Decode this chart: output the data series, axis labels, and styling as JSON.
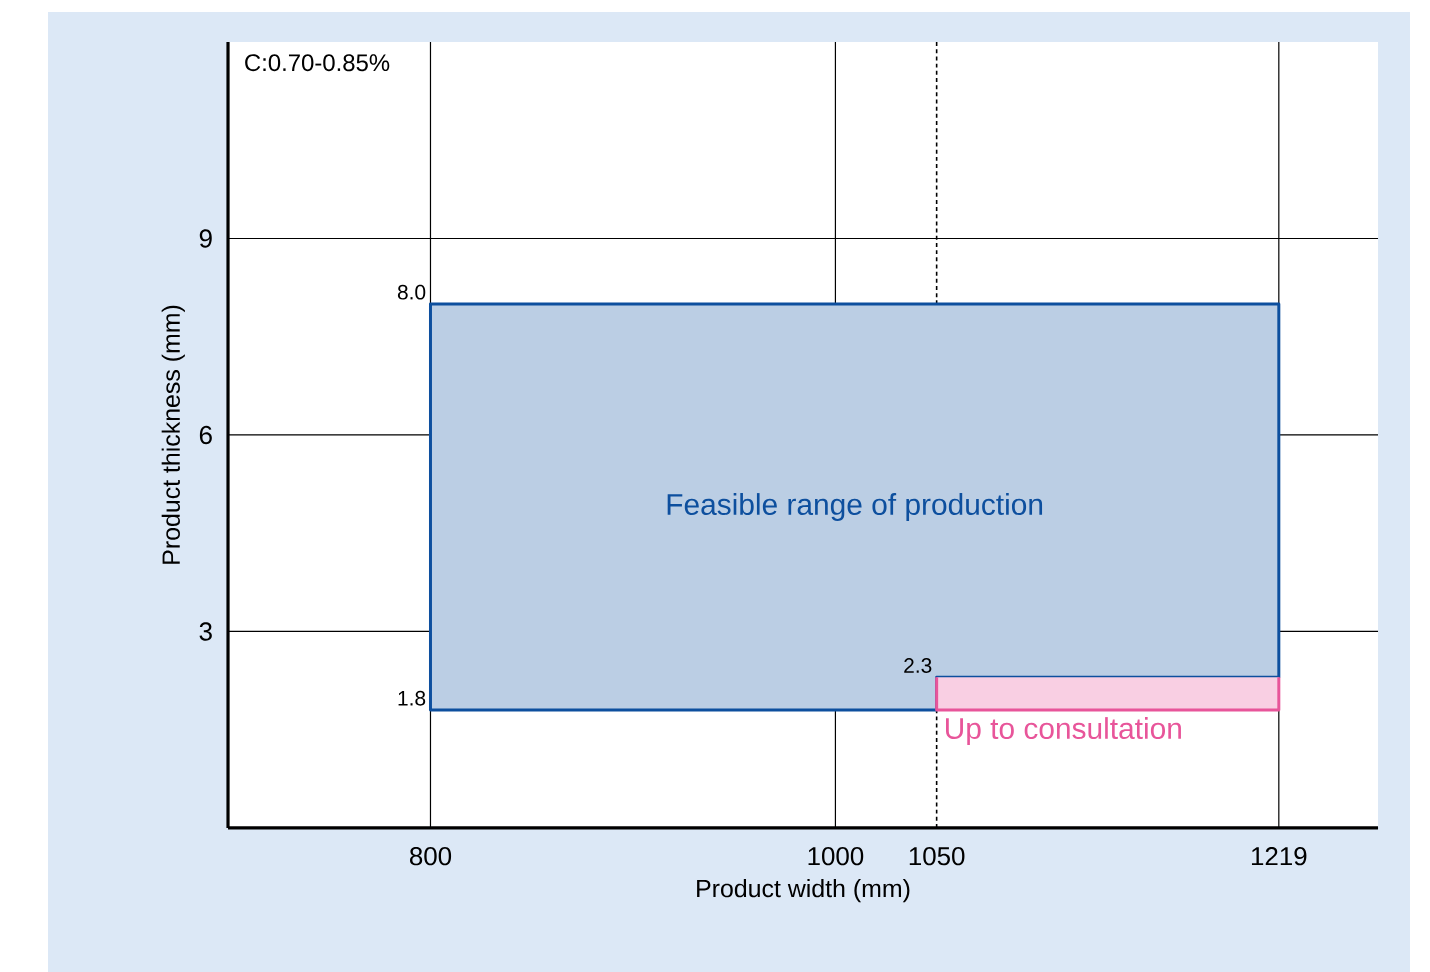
{
  "chart_data": {
    "type": "area",
    "xlabel": "Product width (mm)",
    "ylabel": "Product thickness (mm)",
    "xlim": [
      700,
      1268
    ],
    "ylim": [
      0,
      12
    ],
    "xticks": [
      800,
      1000,
      1050,
      1219
    ],
    "yticks": [
      3,
      6,
      9
    ],
    "grid": true,
    "series": [
      {
        "name": "Feasible range of production",
        "color": "#0d4f9e",
        "x": [
          800,
          1050,
          1050,
          1219,
          1219,
          800
        ],
        "values": [
          1.8,
          1.8,
          2.3,
          2.3,
          8.0,
          8.0
        ],
        "value_labels": [
          "1.8",
          null,
          "2.3",
          null,
          null,
          "8.0"
        ]
      },
      {
        "name": "Up to consultation",
        "color": "#e8559a",
        "x": [
          1050,
          1050,
          1219,
          1219
        ],
        "values": [
          2.3,
          1.8,
          1.8,
          2.3
        ]
      }
    ],
    "ref_lines": [
      {
        "axis": "x",
        "value": 1050,
        "line_style": "dotted"
      }
    ],
    "annotations": [
      "C:0.70-0.85%"
    ]
  }
}
